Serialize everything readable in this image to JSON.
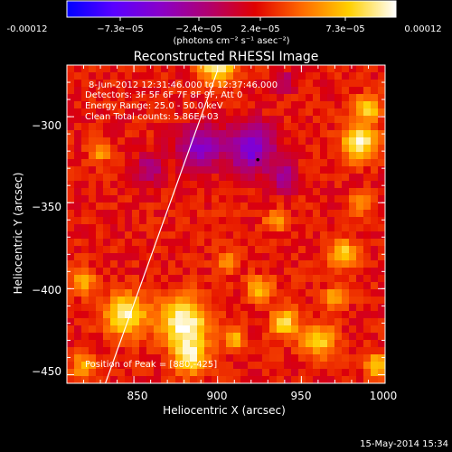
{
  "chart_data": {
    "type": "heatmap",
    "title": "Reconstructed RHESSI Image",
    "colorbar": {
      "tick_labels": [
        "-0.00012",
        "−7.3e−05",
        "−2.4e−05",
        "2.4e−05",
        "7.3e−05",
        "0.00012"
      ],
      "unit_label": "(photons cm⁻² s⁻¹ asec⁻²)",
      "range": [
        -0.00012,
        0.00012
      ],
      "colormap": [
        "#0000ff",
        "#5a00ff",
        "#8a00c8",
        "#b00070",
        "#e00000",
        "#ff6a00",
        "#ffd000",
        "#ffffff"
      ]
    },
    "xlabel": "Heliocentric X (arcsec)",
    "ylabel": "Heliocentric Y (arcsec)",
    "xlim": [
      810,
      1000
    ],
    "ylim": [
      -455,
      -270
    ],
    "x_ticks": [
      850,
      900,
      950,
      1000
    ],
    "y_ticks": [
      -300,
      -350,
      -400,
      -450
    ],
    "x_tick_labels": [
      "850",
      "900",
      "950",
      "1000"
    ],
    "y_tick_labels": [
      "−300",
      "−350",
      "−400",
      "−450"
    ],
    "annotations": [
      "8-Jun-2012 12:31:46.000 to 12:37:46.000",
      "Detectors: 3F 5F 6F 7F 8F 9F, Att 0",
      "Energy Range: 25.0 - 50.0 keV",
      "Clean     Total counts: 5.86E+03"
    ],
    "peak_label": "Position of Peak = [880,-425]",
    "peak": [
      880,
      -425
    ],
    "limb_line": [
      [
        833,
        -455
      ],
      [
        900,
        -273
      ]
    ],
    "marker": [
      924,
      -325
    ],
    "hotspots": [
      {
        "x": 880,
        "y": -420,
        "r": 14,
        "amp": 1.0
      },
      {
        "x": 884,
        "y": -440,
        "r": 9,
        "amp": 0.85
      },
      {
        "x": 900,
        "y": -270,
        "r": 10,
        "amp": 0.95
      },
      {
        "x": 985,
        "y": -315,
        "r": 10,
        "amp": 0.9
      },
      {
        "x": 990,
        "y": -295,
        "r": 7,
        "amp": 0.75
      },
      {
        "x": 845,
        "y": -415,
        "r": 12,
        "amp": 0.85
      },
      {
        "x": 820,
        "y": -395,
        "r": 7,
        "amp": 0.6
      },
      {
        "x": 940,
        "y": -420,
        "r": 8,
        "amp": 0.7
      },
      {
        "x": 960,
        "y": -430,
        "r": 9,
        "amp": 0.75
      },
      {
        "x": 925,
        "y": -400,
        "r": 7,
        "amp": 0.6
      },
      {
        "x": 975,
        "y": -380,
        "r": 8,
        "amp": 0.7
      },
      {
        "x": 995,
        "y": -445,
        "r": 7,
        "amp": 0.65
      },
      {
        "x": 970,
        "y": -405,
        "r": 6,
        "amp": 0.55
      },
      {
        "x": 830,
        "y": -320,
        "r": 6,
        "amp": 0.5
      },
      {
        "x": 935,
        "y": -360,
        "r": 6,
        "amp": 0.5
      },
      {
        "x": 905,
        "y": -385,
        "r": 6,
        "amp": 0.45
      },
      {
        "x": 820,
        "y": -445,
        "r": 7,
        "amp": 0.55
      },
      {
        "x": 985,
        "y": -350,
        "r": 6,
        "amp": 0.5
      },
      {
        "x": 910,
        "y": -430,
        "r": 6,
        "amp": 0.6
      }
    ],
    "coldspots": [
      {
        "x": 890,
        "y": -318,
        "r": 12,
        "amp": -0.8
      },
      {
        "x": 920,
        "y": -318,
        "r": 13,
        "amp": -0.95
      },
      {
        "x": 940,
        "y": -335,
        "r": 8,
        "amp": -0.6
      },
      {
        "x": 860,
        "y": -330,
        "r": 8,
        "amp": -0.5
      },
      {
        "x": 940,
        "y": -280,
        "r": 6,
        "amp": -0.4
      }
    ]
  },
  "footer": {
    "timestamp": "15-May-2014 15:34"
  }
}
